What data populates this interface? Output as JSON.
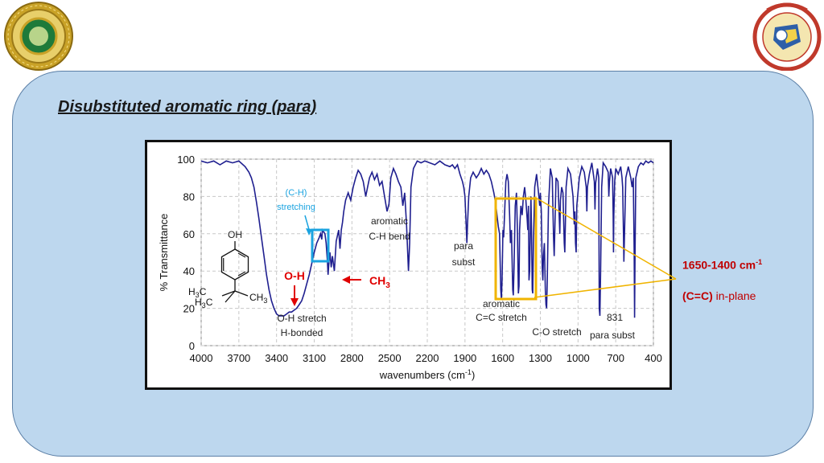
{
  "slide_title": "Disubstituted aromatic ring (para)",
  "side_notes": {
    "range": "1650-1400 cm",
    "range_sup": "-1",
    "bond": "C=C",
    "bond_desc": " in-plane"
  },
  "logos": {
    "left": "university-seal",
    "right": "pharmacy-college-emblem"
  },
  "colors": {
    "panel": "#bdd7ee",
    "spectrum": "#1f1f8f",
    "highlight_orange": "#f0b400",
    "highlight_blue": "#1aa3e0",
    "red": "#e00000"
  },
  "chart_data": {
    "type": "line",
    "xlabel": "wavenumbers (cm",
    "xlabel_sup": "-1",
    "xlabel_end": ")",
    "ylabel": "% Transmittance",
    "xlim": [
      4000,
      400
    ],
    "ylim": [
      0,
      100
    ],
    "x_ticks": [
      "4000",
      "3700",
      "3400",
      "3100",
      "2800",
      "2500",
      "2200",
      "1900",
      "1600",
      "1300",
      "1000",
      "700",
      "400"
    ],
    "y_ticks": [
      "100",
      "80",
      "60",
      "40",
      "20",
      "0"
    ],
    "grid": true,
    "annotations": {
      "ch_stretch": [
        "(C-H)",
        "stretching"
      ],
      "arom_bend": [
        "aromatic",
        "C-H bend"
      ],
      "para": [
        "para",
        "subst"
      ],
      "oh_label": "O-H",
      "ch3_label": "CH",
      "ch3_sub": "3",
      "oh_stretch": [
        "O-H stretch",
        "H-bonded"
      ],
      "cc_stretch": [
        "aromatic",
        "C=C stretch"
      ],
      "co_stretch": "C-O stretch",
      "peak_831": "831",
      "para_subst2": "para subst"
    },
    "molecule": {
      "top": "OH",
      "left_top": "H",
      "left_top_sub": "3",
      "left_top_c": "C",
      "right": "CH",
      "right_sub": "3",
      "bottom_h": "H",
      "bottom_sub": "3",
      "bottom_c": "C"
    },
    "series": [
      {
        "points": [
          [
            4000,
            99
          ],
          [
            3950,
            98
          ],
          [
            3900,
            99
          ],
          [
            3850,
            97
          ],
          [
            3800,
            99
          ],
          [
            3750,
            98
          ],
          [
            3700,
            99
          ],
          [
            3650,
            96
          ],
          [
            3620,
            93
          ],
          [
            3600,
            90
          ],
          [
            3580,
            85
          ],
          [
            3560,
            77
          ],
          [
            3540,
            68
          ],
          [
            3520,
            58
          ],
          [
            3500,
            48
          ],
          [
            3480,
            38
          ],
          [
            3460,
            30
          ],
          [
            3440,
            24
          ],
          [
            3420,
            20
          ],
          [
            3400,
            17
          ],
          [
            3380,
            16
          ],
          [
            3360,
            16
          ],
          [
            3340,
            16
          ],
          [
            3320,
            17
          ],
          [
            3300,
            18
          ],
          [
            3280,
            18
          ],
          [
            3260,
            19
          ],
          [
            3240,
            20
          ],
          [
            3220,
            22
          ],
          [
            3200,
            24
          ],
          [
            3180,
            28
          ],
          [
            3160,
            33
          ],
          [
            3140,
            38
          ],
          [
            3120,
            44
          ],
          [
            3100,
            50
          ],
          [
            3080,
            55
          ],
          [
            3060,
            58
          ],
          [
            3050,
            60
          ],
          [
            3040,
            57
          ],
          [
            3035,
            62
          ],
          [
            3025,
            61
          ],
          [
            3015,
            60
          ],
          [
            3005,
            55
          ],
          [
            2995,
            45
          ],
          [
            2990,
            38
          ],
          [
            2985,
            43
          ],
          [
            2975,
            50
          ],
          [
            2965,
            42
          ],
          [
            2955,
            48
          ],
          [
            2940,
            40
          ],
          [
            2925,
            56
          ],
          [
            2905,
            62
          ],
          [
            2895,
            52
          ],
          [
            2885,
            62
          ],
          [
            2875,
            66
          ],
          [
            2865,
            72
          ],
          [
            2850,
            78
          ],
          [
            2830,
            82
          ],
          [
            2810,
            78
          ],
          [
            2790,
            85
          ],
          [
            2770,
            90
          ],
          [
            2750,
            94
          ],
          [
            2730,
            92
          ],
          [
            2710,
            88
          ],
          [
            2690,
            80
          ],
          [
            2675,
            85
          ],
          [
            2660,
            90
          ],
          [
            2640,
            93
          ],
          [
            2620,
            89
          ],
          [
            2600,
            92
          ],
          [
            2580,
            86
          ],
          [
            2560,
            88
          ],
          [
            2540,
            80
          ],
          [
            2520,
            72
          ],
          [
            2505,
            76
          ],
          [
            2490,
            90
          ],
          [
            2470,
            95
          ],
          [
            2450,
            92
          ],
          [
            2430,
            88
          ],
          [
            2410,
            85
          ],
          [
            2395,
            75
          ],
          [
            2380,
            82
          ],
          [
            2365,
            65
          ],
          [
            2350,
            40
          ],
          [
            2340,
            55
          ],
          [
            2330,
            85
          ],
          [
            2310,
            95
          ],
          [
            2280,
            99
          ],
          [
            2250,
            98
          ],
          [
            2220,
            99
          ],
          [
            2180,
            98
          ],
          [
            2140,
            97
          ],
          [
            2100,
            99
          ],
          [
            2060,
            97
          ],
          [
            2020,
            96
          ],
          [
            2000,
            97
          ],
          [
            1980,
            95
          ],
          [
            1960,
            97
          ],
          [
            1940,
            92
          ],
          [
            1920,
            88
          ],
          [
            1910,
            85
          ],
          [
            1900,
            80
          ],
          [
            1890,
            64
          ],
          [
            1885,
            55
          ],
          [
            1880,
            65
          ],
          [
            1870,
            80
          ],
          [
            1855,
            90
          ],
          [
            1835,
            93
          ],
          [
            1810,
            90
          ],
          [
            1790,
            92
          ],
          [
            1770,
            95
          ],
          [
            1750,
            92
          ],
          [
            1730,
            94
          ],
          [
            1710,
            92
          ],
          [
            1690,
            88
          ],
          [
            1670,
            82
          ],
          [
            1655,
            76
          ],
          [
            1645,
            70
          ],
          [
            1635,
            64
          ],
          [
            1625,
            60
          ],
          [
            1615,
            30
          ],
          [
            1610,
            25
          ],
          [
            1605,
            35
          ],
          [
            1598,
            62
          ],
          [
            1592,
            58
          ],
          [
            1585,
            70
          ],
          [
            1575,
            88
          ],
          [
            1565,
            92
          ],
          [
            1555,
            88
          ],
          [
            1545,
            70
          ],
          [
            1538,
            55
          ],
          [
            1530,
            62
          ],
          [
            1520,
            30
          ],
          [
            1515,
            27
          ],
          [
            1510,
            40
          ],
          [
            1500,
            75
          ],
          [
            1490,
            82
          ],
          [
            1482,
            60
          ],
          [
            1475,
            28
          ],
          [
            1470,
            32
          ],
          [
            1465,
            62
          ],
          [
            1455,
            75
          ],
          [
            1445,
            70
          ],
          [
            1435,
            80
          ],
          [
            1425,
            85
          ],
          [
            1415,
            78
          ],
          [
            1405,
            68
          ],
          [
            1400,
            62
          ],
          [
            1395,
            75
          ],
          [
            1390,
            35
          ],
          [
            1385,
            40
          ],
          [
            1375,
            80
          ],
          [
            1370,
            60
          ],
          [
            1365,
            30
          ],
          [
            1360,
            28
          ],
          [
            1355,
            55
          ],
          [
            1345,
            85
          ],
          [
            1330,
            92
          ],
          [
            1315,
            82
          ],
          [
            1305,
            75
          ],
          [
            1300,
            82
          ],
          [
            1292,
            72
          ],
          [
            1285,
            42
          ],
          [
            1280,
            35
          ],
          [
            1275,
            48
          ],
          [
            1268,
            55
          ],
          [
            1260,
            30
          ],
          [
            1255,
            22
          ],
          [
            1250,
            20
          ],
          [
            1245,
            35
          ],
          [
            1235,
            75
          ],
          [
            1220,
            95
          ],
          [
            1205,
            90
          ],
          [
            1195,
            58
          ],
          [
            1190,
            48
          ],
          [
            1185,
            62
          ],
          [
            1175,
            90
          ],
          [
            1160,
            88
          ],
          [
            1150,
            70
          ],
          [
            1145,
            60
          ],
          [
            1140,
            78
          ],
          [
            1130,
            85
          ],
          [
            1120,
            82
          ],
          [
            1110,
            55
          ],
          [
            1105,
            50
          ],
          [
            1095,
            85
          ],
          [
            1080,
            95
          ],
          [
            1060,
            92
          ],
          [
            1040,
            80
          ],
          [
            1030,
            65
          ],
          [
            1025,
            72
          ],
          [
            1020,
            55
          ],
          [
            1015,
            50
          ],
          [
            1010,
            75
          ],
          [
            990,
            90
          ],
          [
            970,
            96
          ],
          [
            950,
            93
          ],
          [
            935,
            85
          ],
          [
            930,
            72
          ],
          [
            925,
            85
          ],
          [
            910,
            92
          ],
          [
            890,
            98
          ],
          [
            870,
            88
          ],
          [
            865,
            73
          ],
          [
            860,
            87
          ],
          [
            845,
            95
          ],
          [
            835,
            90
          ],
          [
            831,
            20
          ],
          [
            826,
            16
          ],
          [
            820,
            40
          ],
          [
            812,
            85
          ],
          [
            800,
            98
          ],
          [
            780,
            96
          ],
          [
            760,
            93
          ],
          [
            755,
            80
          ],
          [
            750,
            88
          ],
          [
            740,
            95
          ],
          [
            725,
            90
          ],
          [
            720,
            70
          ],
          [
            718,
            50
          ],
          [
            715,
            70
          ],
          [
            708,
            88
          ],
          [
            700,
            95
          ],
          [
            680,
            92
          ],
          [
            660,
            96
          ],
          [
            650,
            90
          ],
          [
            645,
            85
          ],
          [
            638,
            60
          ],
          [
            635,
            45
          ],
          [
            630,
            60
          ],
          [
            620,
            90
          ],
          [
            600,
            96
          ],
          [
            580,
            90
          ],
          [
            570,
            85
          ],
          [
            560,
            90
          ],
          [
            553,
            50
          ],
          [
            550,
            15
          ],
          [
            547,
            45
          ],
          [
            540,
            90
          ],
          [
            520,
            96
          ],
          [
            500,
            98
          ],
          [
            480,
            97
          ],
          [
            460,
            99
          ],
          [
            440,
            98
          ],
          [
            420,
            99
          ],
          [
            400,
            98
          ]
        ]
      }
    ]
  }
}
